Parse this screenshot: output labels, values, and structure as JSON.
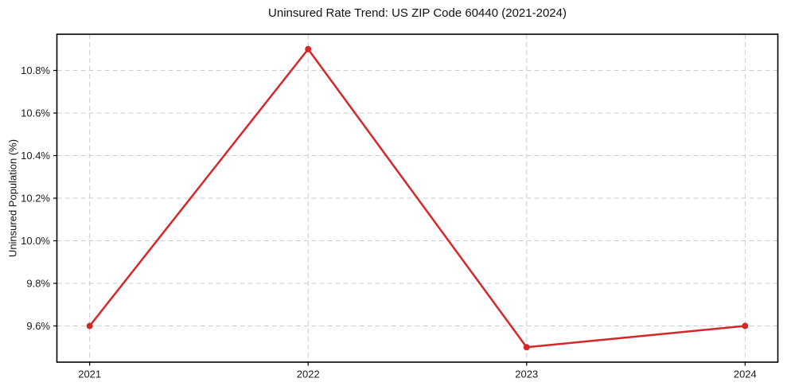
{
  "chart_data": {
    "type": "line",
    "title": "Uninsured Rate Trend: US ZIP Code 60440 (2021-2024)",
    "xlabel": "",
    "ylabel": "Uninsured Population (%)",
    "categories": [
      "2021",
      "2022",
      "2023",
      "2024"
    ],
    "x_values": [
      2021,
      2022,
      2023,
      2024
    ],
    "values": [
      9.6,
      10.9,
      9.5,
      9.6
    ],
    "xlim": [
      2020.85,
      2024.15
    ],
    "ylim": [
      9.43,
      10.97
    ],
    "y_ticks": {
      "values": [
        9.6,
        9.8,
        10.0,
        10.2,
        10.4,
        10.6,
        10.8
      ],
      "labels": [
        "9.6%",
        "9.8%",
        "10.0%",
        "10.2%",
        "10.4%",
        "10.6%",
        "10.8%"
      ]
    },
    "x_ticks": {
      "values": [
        2021,
        2022,
        2023,
        2024
      ],
      "labels": [
        "2021",
        "2022",
        "2023",
        "2024"
      ]
    },
    "grid": {
      "show": true,
      "style": "dashed",
      "axes": "both"
    },
    "legend": {
      "show": false
    },
    "style": {
      "line_color": "#d62728",
      "marker": "circle",
      "marker_radius": 4,
      "line_width": 2.5,
      "grid_color": "#cccccc",
      "spine_color": "#000000",
      "text_color": "#1a1a1a",
      "background": "#ffffff"
    }
  }
}
